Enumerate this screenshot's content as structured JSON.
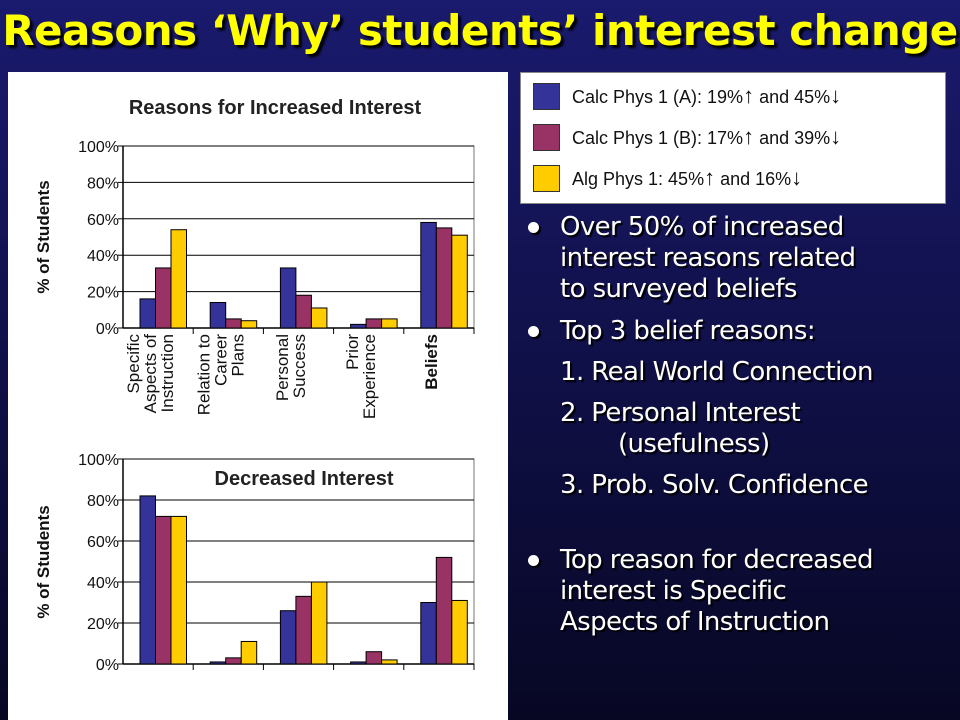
{
  "slide": {
    "title": "Reasons ‘Why’ students’ interest change"
  },
  "legend": [
    {
      "label": "Calc Phys 1 (A): 19%",
      "up": "↑",
      "mid": " and 45%",
      "down": "↓",
      "color": "#333399"
    },
    {
      "label": "Calc Phys 1 (B): 17%",
      "up": "↑",
      "mid": " and 39%",
      "down": "↓",
      "color": "#993366"
    },
    {
      "label": "Alg Phys 1: 45%",
      "up": "↑",
      "mid": " and 16%",
      "down": "↓",
      "color": "#ffcc00"
    }
  ],
  "bullets": {
    "b1_l1": "Over 50% of increased",
    "b1_l2": "interest reasons related",
    "b1_l3": "to surveyed beliefs",
    "b2": "Top 3 belief reasons:",
    "r1": "1. Real World Connection",
    "r2_l1": "2. Personal Interest",
    "r2_l2": "(usefulness)",
    "r3": "3. Prob. Solv. Confidence",
    "b3_l1": "Top reason for decreased",
    "b3_l2": "interest is Specific",
    "b3_l3": "Aspects of Instruction"
  },
  "chart_data": [
    {
      "type": "bar",
      "title": "Reasons for Increased Interest",
      "ylabel": "% of Students",
      "ylim": [
        0,
        100
      ],
      "yticks": [
        "0%",
        "20%",
        "40%",
        "60%",
        "80%",
        "100%"
      ],
      "categories": [
        [
          "Specific",
          "Aspects of",
          "Instruction"
        ],
        [
          "Relation to",
          "Career",
          "Plans"
        ],
        [
          "Personal",
          "Success"
        ],
        [
          "Prior",
          "Experience"
        ],
        [
          "Beliefs"
        ]
      ],
      "series": [
        {
          "name": "Calc Phys 1 (A)",
          "color": "#333399",
          "values": [
            16,
            14,
            33,
            2,
            58
          ]
        },
        {
          "name": "Calc Phys 1 (B)",
          "color": "#993366",
          "values": [
            33,
            5,
            18,
            5,
            55
          ]
        },
        {
          "name": "Alg Phys 1",
          "color": "#ffcc00",
          "values": [
            54,
            4,
            11,
            5,
            51
          ]
        }
      ]
    },
    {
      "type": "bar",
      "title": "Decreased Interest",
      "ylabel": "% of Students",
      "ylim": [
        0,
        100
      ],
      "yticks": [
        "0%",
        "20%",
        "40%",
        "60%",
        "80%",
        "100%"
      ],
      "series": [
        {
          "name": "Calc Phys 1 (A)",
          "color": "#333399",
          "values": [
            82,
            1,
            26,
            1,
            30
          ]
        },
        {
          "name": "Calc Phys 1 (B)",
          "color": "#993366",
          "values": [
            72,
            3,
            33,
            6,
            52
          ]
        },
        {
          "name": "Alg Phys 1",
          "color": "#ffcc00",
          "values": [
            72,
            11,
            40,
            2,
            31
          ]
        }
      ]
    }
  ]
}
